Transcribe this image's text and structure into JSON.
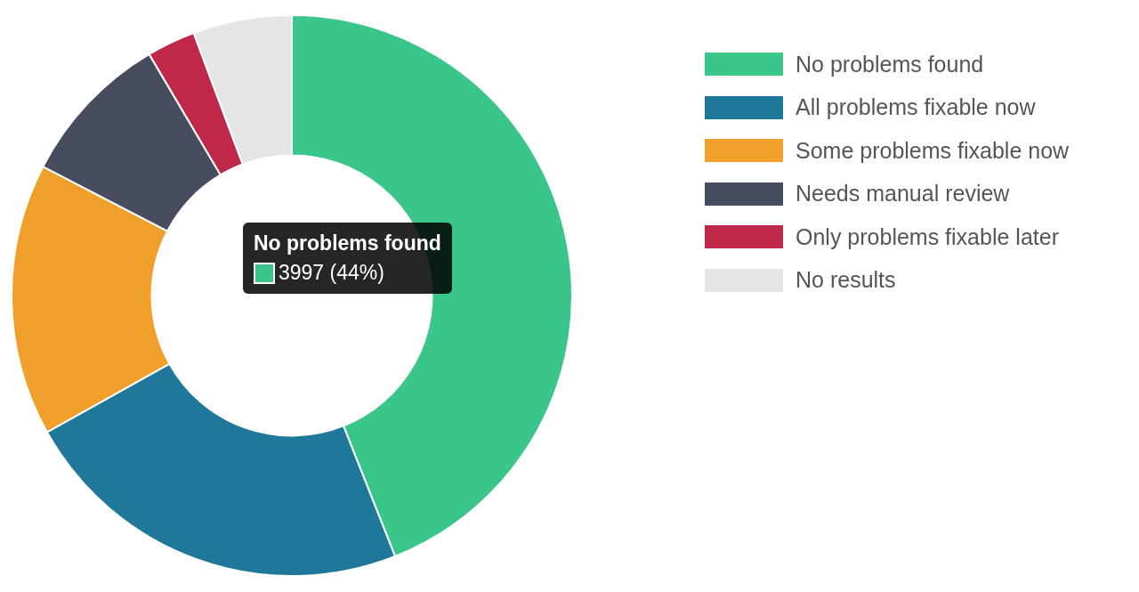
{
  "chart_data": {
    "type": "donut",
    "categories": [
      "No problems found",
      "All problems fixable now",
      "Some problems fixable now",
      "Needs manual review",
      "Only problems fixable later",
      "No results"
    ],
    "values": [
      44,
      22.9,
      15.7,
      8.9,
      2.8,
      5.7
    ],
    "colors": [
      "#3ac58b",
      "#1f7799",
      "#f09f2b",
      "#474c5e",
      "#c0284a",
      "#e5e5e5"
    ],
    "legend": "top right",
    "annotations": [
      "No problems found",
      "3997 (44%)"
    ]
  }
}
